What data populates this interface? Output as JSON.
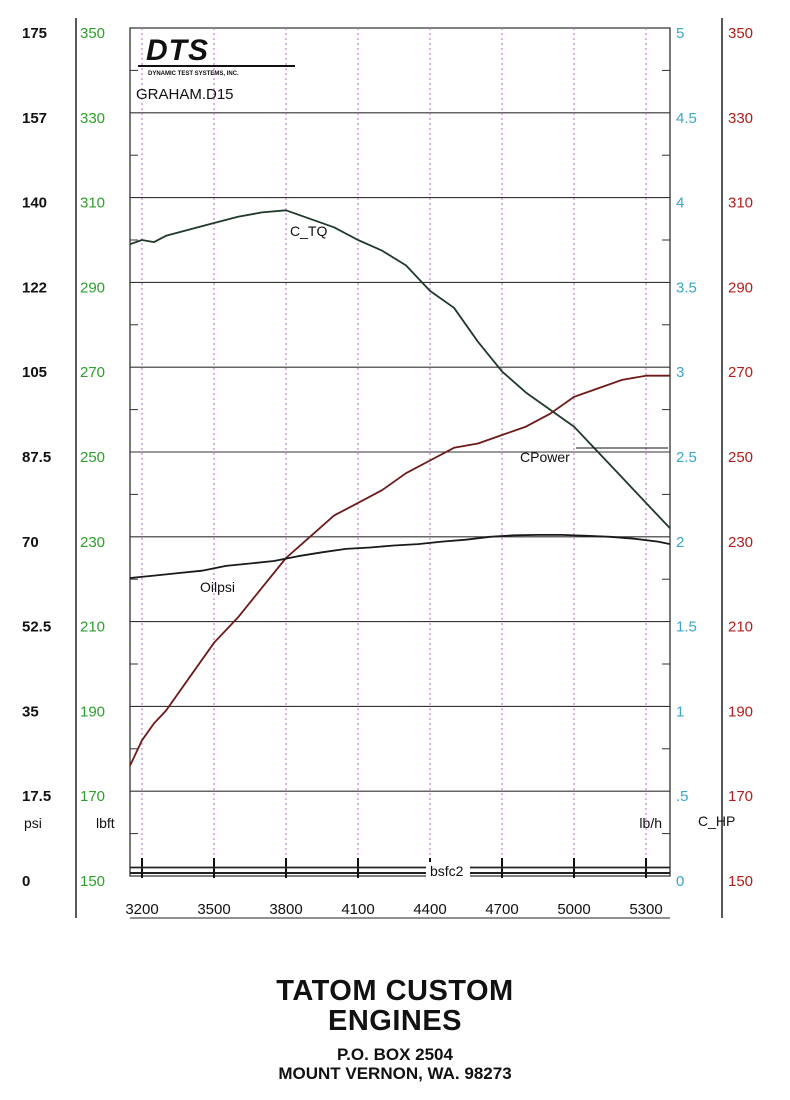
{
  "chart_data": {
    "type": "line",
    "title": "GRAHAM.D15",
    "logo": {
      "brand": "DTS",
      "tagline": "DYNAMIC TEST SYSTEMS, INC."
    },
    "x": {
      "ticks": [
        3200,
        3500,
        3800,
        4100,
        4400,
        4700,
        5000,
        5300
      ],
      "range": [
        3150,
        5400
      ]
    },
    "axes": [
      {
        "id": "psi",
        "unit": "psi",
        "color": "#111111",
        "range": [
          0,
          175
        ],
        "ticks": [
          "0",
          "17.5",
          "35",
          "52.5",
          "70",
          "87.5",
          "105",
          "122",
          "140",
          "157",
          "175"
        ]
      },
      {
        "id": "lbft",
        "unit": "lbft",
        "color": "#2e9e2e",
        "range": [
          150,
          350
        ],
        "ticks": [
          "150",
          "170",
          "190",
          "210",
          "230",
          "250",
          "270",
          "290",
          "310",
          "330",
          "350"
        ]
      },
      {
        "id": "lbh",
        "unit": "lb/h",
        "color": "#3aa6c9",
        "range": [
          0,
          5
        ],
        "ticks": [
          "0",
          ".5",
          "1",
          "1.5",
          "2",
          "2.5",
          "3",
          "3.5",
          "4",
          "4.5",
          "5"
        ]
      },
      {
        "id": "hp",
        "unit": "C_HP",
        "color": "#b01e1e",
        "range": [
          150,
          350
        ],
        "ticks": [
          "150",
          "170",
          "190",
          "210",
          "230",
          "250",
          "270",
          "290",
          "310",
          "330",
          "350"
        ]
      }
    ],
    "series": [
      {
        "name": "C_TQ",
        "axis": "lbft",
        "color": "#1f3a2a",
        "x": [
          3150,
          3200,
          3250,
          3300,
          3400,
          3500,
          3600,
          3700,
          3800,
          3900,
          4000,
          4100,
          4200,
          4300,
          4400,
          4500,
          4600,
          4700,
          4800,
          4900,
          5000,
          5100,
          5200,
          5300,
          5400
        ],
        "y": [
          299,
          300,
          299.5,
          301,
          302.5,
          304,
          305.5,
          306.5,
          307,
          305,
          303,
          300,
          297.5,
          294,
          288,
          284,
          276,
          269,
          264,
          260,
          256,
          250,
          244,
          238,
          232
        ]
      },
      {
        "name": "CPower",
        "axis": "hp",
        "color": "#6e1a1a",
        "x": [
          3150,
          3200,
          3250,
          3300,
          3400,
          3500,
          3600,
          3700,
          3800,
          3900,
          4000,
          4100,
          4200,
          4300,
          4400,
          4500,
          4600,
          4700,
          4800,
          4900,
          5000,
          5100,
          5200,
          5300,
          5400
        ],
        "y": [
          176,
          182,
          186,
          189,
          197,
          205,
          211,
          218,
          225,
          230,
          235,
          238,
          241,
          245,
          248,
          251,
          252,
          254,
          256,
          259,
          263,
          265,
          267,
          268,
          268
        ]
      },
      {
        "name": "Oilpsi",
        "axis": "psi",
        "color": "#1a1a1a",
        "x": [
          3150,
          3250,
          3350,
          3450,
          3550,
          3650,
          3750,
          3850,
          3950,
          4050,
          4150,
          4250,
          4350,
          4450,
          4550,
          4650,
          4750,
          4850,
          4950,
          5050,
          5150,
          5250,
          5350,
          5400
        ],
        "y": [
          61.5,
          62,
          62.5,
          63,
          64,
          64.5,
          65,
          66,
          66.8,
          67.5,
          67.8,
          68.2,
          68.5,
          69,
          69.4,
          70,
          70.3,
          70.4,
          70.4,
          70.2,
          70,
          69.6,
          69,
          68.5
        ]
      },
      {
        "name": "bsfc2",
        "axis": "lbh",
        "color": "#222222",
        "x": [
          3150,
          5400
        ],
        "y": [
          0.05,
          0.05
        ]
      }
    ],
    "grid": true,
    "legend": "inline labels"
  },
  "footer": {
    "company_line1": "TATOM CUSTOM",
    "company_line2": "ENGINES",
    "address_line1": "P.O. BOX 2504",
    "address_line2": "MOUNT VERNON, WA. 98273"
  }
}
